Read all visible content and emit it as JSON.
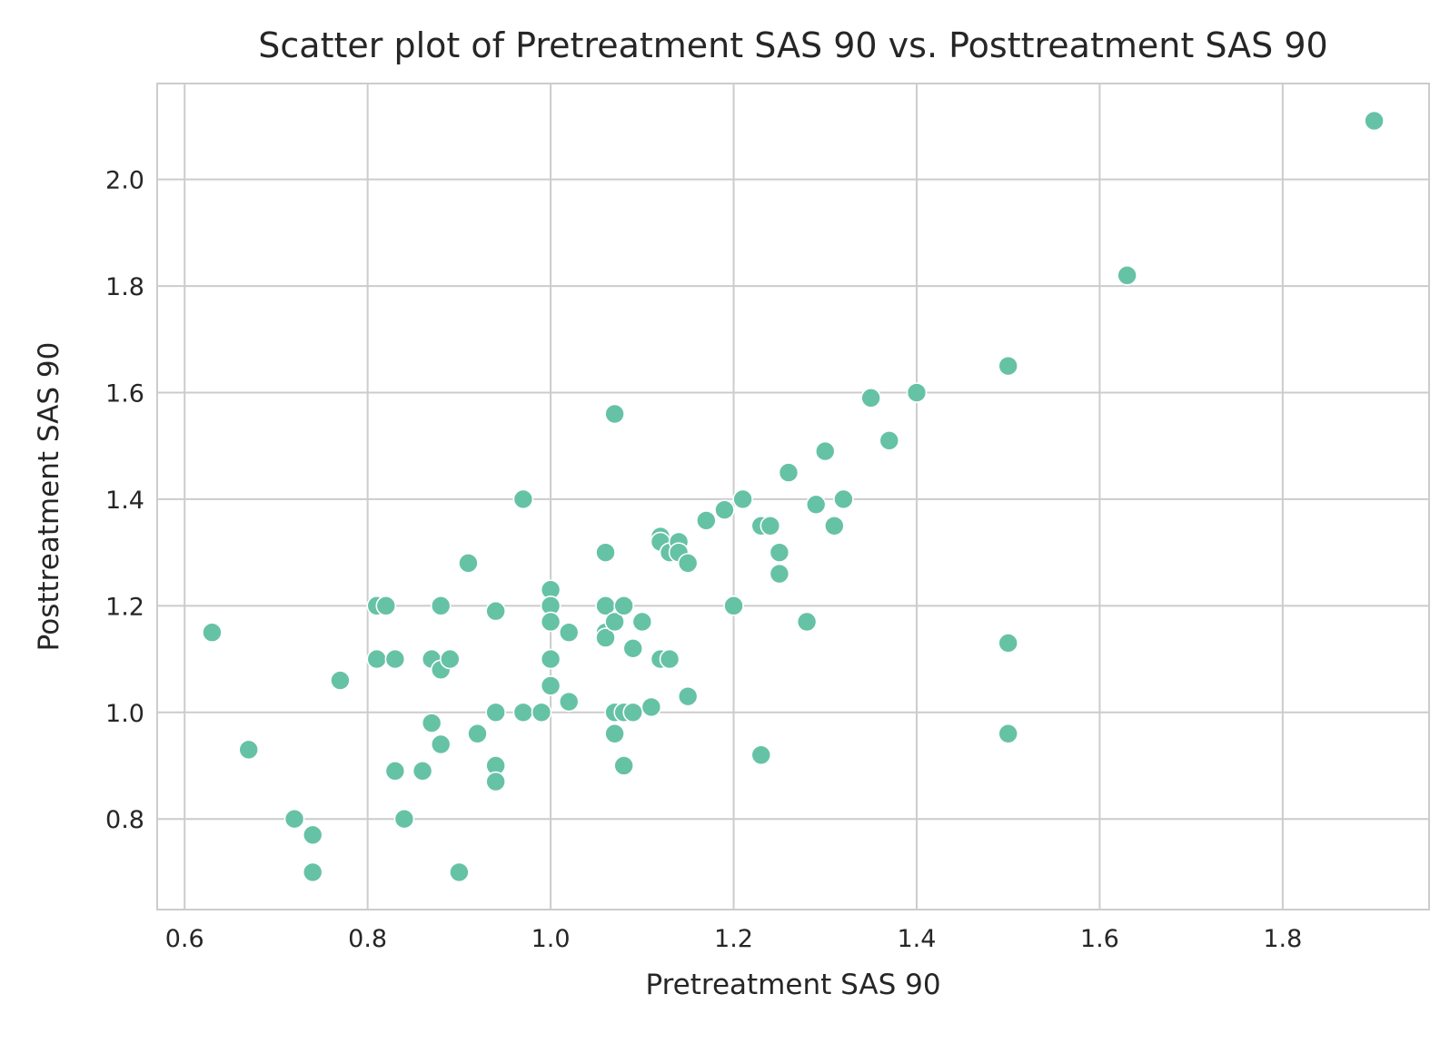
{
  "chart_data": {
    "type": "scatter",
    "title": "Scatter plot of Pretreatment SAS 90 vs. Posttreatment SAS 90",
    "xlabel": "Pretreatment SAS 90",
    "ylabel": "Posttreatment SAS 90",
    "xlim": [
      0.57,
      1.96
    ],
    "ylim": [
      0.63,
      2.18
    ],
    "xticks": [
      0.6,
      0.8,
      1.0,
      1.2,
      1.4,
      1.6,
      1.8
    ],
    "xtick_labels": [
      "0.6",
      "0.8",
      "1.0",
      "1.2",
      "1.4",
      "1.6",
      "1.8"
    ],
    "yticks": [
      0.8,
      1.0,
      1.2,
      1.4,
      1.6,
      1.8,
      2.0
    ],
    "ytick_labels": [
      "0.8",
      "1.0",
      "1.2",
      "1.4",
      "1.6",
      "1.8",
      "2.0"
    ],
    "grid": true,
    "color": "#66c2a5",
    "points": [
      [
        0.63,
        1.15
      ],
      [
        0.67,
        0.93
      ],
      [
        0.72,
        0.8
      ],
      [
        0.74,
        0.77
      ],
      [
        0.74,
        0.7
      ],
      [
        0.77,
        1.06
      ],
      [
        0.81,
        1.2
      ],
      [
        0.82,
        1.2
      ],
      [
        0.81,
        1.1
      ],
      [
        0.83,
        1.1
      ],
      [
        0.83,
        0.89
      ],
      [
        0.84,
        0.8
      ],
      [
        0.86,
        0.89
      ],
      [
        0.87,
        1.1
      ],
      [
        0.88,
        1.08
      ],
      [
        0.88,
        1.2
      ],
      [
        0.89,
        1.1
      ],
      [
        0.87,
        0.98
      ],
      [
        0.88,
        0.94
      ],
      [
        0.9,
        0.7
      ],
      [
        0.91,
        1.28
      ],
      [
        0.92,
        0.96
      ],
      [
        0.94,
        1.19
      ],
      [
        0.94,
        1.0
      ],
      [
        0.94,
        0.9
      ],
      [
        0.94,
        0.87
      ],
      [
        0.97,
        1.4
      ],
      [
        0.97,
        1.0
      ],
      [
        0.99,
        1.0
      ],
      [
        1.0,
        1.23
      ],
      [
        1.0,
        1.2
      ],
      [
        1.0,
        1.17
      ],
      [
        1.0,
        1.1
      ],
      [
        1.0,
        1.05
      ],
      [
        1.02,
        1.15
      ],
      [
        1.02,
        1.02
      ],
      [
        1.06,
        1.3
      ],
      [
        1.06,
        1.2
      ],
      [
        1.06,
        1.15
      ],
      [
        1.06,
        1.14
      ],
      [
        1.07,
        1.56
      ],
      [
        1.07,
        1.17
      ],
      [
        1.08,
        1.2
      ],
      [
        1.07,
        1.0
      ],
      [
        1.08,
        1.0
      ],
      [
        1.07,
        0.96
      ],
      [
        1.08,
        0.9
      ],
      [
        1.09,
        1.12
      ],
      [
        1.09,
        1.0
      ],
      [
        1.1,
        1.17
      ],
      [
        1.11,
        1.01
      ],
      [
        1.12,
        1.33
      ],
      [
        1.12,
        1.32
      ],
      [
        1.12,
        1.1
      ],
      [
        1.13,
        1.3
      ],
      [
        1.13,
        1.1
      ],
      [
        1.14,
        1.32
      ],
      [
        1.14,
        1.3
      ],
      [
        1.15,
        1.28
      ],
      [
        1.15,
        1.03
      ],
      [
        1.17,
        1.36
      ],
      [
        1.19,
        1.38
      ],
      [
        1.2,
        1.2
      ],
      [
        1.21,
        1.4
      ],
      [
        1.23,
        1.35
      ],
      [
        1.24,
        1.35
      ],
      [
        1.23,
        0.92
      ],
      [
        1.25,
        1.3
      ],
      [
        1.25,
        1.26
      ],
      [
        1.26,
        1.45
      ],
      [
        1.28,
        1.17
      ],
      [
        1.29,
        1.39
      ],
      [
        1.3,
        1.49
      ],
      [
        1.31,
        1.35
      ],
      [
        1.32,
        1.4
      ],
      [
        1.35,
        1.59
      ],
      [
        1.37,
        1.51
      ],
      [
        1.4,
        1.6
      ],
      [
        1.5,
        1.65
      ],
      [
        1.5,
        1.13
      ],
      [
        1.5,
        0.96
      ],
      [
        1.63,
        1.82
      ],
      [
        1.9,
        2.11
      ]
    ]
  }
}
